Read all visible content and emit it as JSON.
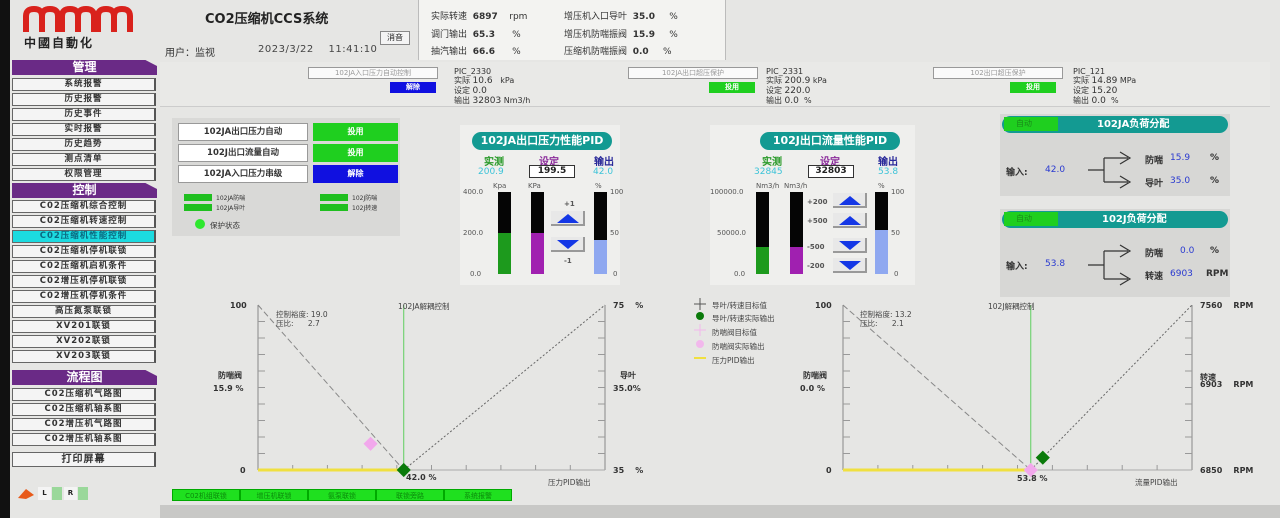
{
  "brand": {
    "name": "中國自動化",
    "logo_color": "#d9221c"
  },
  "header": {
    "title": "CO2压缩机CCS系统",
    "user": "用户：监视",
    "date": "2023/3/22",
    "time": "11:41:10",
    "mute": "消音"
  },
  "info": [
    {
      "label": "实际转速",
      "value": "6897",
      "unit": "rpm"
    },
    {
      "label": "调门输出",
      "value": "65.3",
      "unit": "%"
    },
    {
      "label": "抽汽输出",
      "value": "66.6",
      "unit": "%"
    },
    {
      "label": "增压机入口导叶",
      "value": "35.0",
      "unit": "%"
    },
    {
      "label": "增压机防喘振阀",
      "value": "15.9",
      "unit": "%"
    },
    {
      "label": "压缩机防喘振阀",
      "value": "0.0",
      "unit": "%"
    }
  ],
  "pic": [
    {
      "box": "102JA入口压力自动控制",
      "btn": "解除",
      "btn_color": "#1010e0",
      "tag": "PIC_2330",
      "pv_l": "实际",
      "pv": "10.6",
      "sp_l": "设定",
      "sp": "0.0",
      "out_l": "输出",
      "out": "32803",
      "unit": "kPa",
      "out_unit": "Nm3/h"
    },
    {
      "box": "102JA出口超压保护",
      "btn": "投用",
      "btn_color": "#1fcf1f",
      "tag": "PIC_2331",
      "pv_l": "实际",
      "pv": "200.9",
      "sp_l": "设定",
      "sp": "220.0",
      "out_l": "输出",
      "out": "0.0",
      "unit": "kPa",
      "out_unit": "%"
    },
    {
      "box": "102出口超压保护",
      "btn": "投用",
      "btn_color": "#1fcf1f",
      "tag": "PIC_121",
      "pv_l": "实际",
      "pv": "14.89",
      "sp_l": "设定",
      "sp": "15.20",
      "out_l": "输出",
      "out": "0.0",
      "unit": "MPa",
      "out_unit": "%"
    }
  ],
  "sidebar": {
    "h1": "管理",
    "g1": [
      "系统报警",
      "历史报警",
      "历史事件",
      "实时报警",
      "历史趋势",
      "测点清单",
      "权限管理"
    ],
    "h2": "控制",
    "g2": [
      "C02压缩机综合控制",
      "C02压缩机转速控制",
      "C02压缩机性能控制",
      "C02压缩机停机联锁",
      "C02压缩机启机条件",
      "C02增压机停机联锁",
      "C02增压机停机条件",
      "高压氮泵联锁",
      "XV201联锁",
      "XV202联锁",
      "XV203联锁"
    ],
    "active": "C02压缩机性能控制",
    "h3": "流程图",
    "g3": [
      "C02压缩机气路图",
      "C02压缩机轴系图",
      "C02增压机气路图",
      "C02增压机轴系图"
    ],
    "print": "打印屏幕"
  },
  "controls": {
    "rows": [
      {
        "label": "102JA出口压力自动",
        "btn": "投用",
        "color": "#1fcf1f"
      },
      {
        "label": "102J出口流量自动",
        "btn": "投用",
        "color": "#1fcf1f"
      },
      {
        "label": "102JA入口压力串级",
        "btn": "解除",
        "color": "#1010e0"
      }
    ],
    "leds": [
      "102JA防喘",
      "102JA导叶",
      "102J防喘",
      "102J转速"
    ],
    "protect": "保护状态"
  },
  "pid1": {
    "title": "102JA出口压力性能PID",
    "pv_l": "实测",
    "sp_l": "设定",
    "out_l": "输出",
    "pv": "200.9",
    "sp": "199.5",
    "out": "42.0",
    "u1": "Kpa",
    "u2": "KPa",
    "u3": "%",
    "scale_l": [
      "400.0",
      "200.0",
      "0.0"
    ],
    "scale_r": [
      "100",
      "50",
      "0"
    ],
    "pv_frac": 0.502,
    "sp_frac": 0.499,
    "out_frac": 0.42,
    "step_up": "+1",
    "step_dn": "-1"
  },
  "pid2": {
    "title": "102J出口流量性能PID",
    "pv_l": "实测",
    "sp_l": "设定",
    "out_l": "输出",
    "pv": "32845",
    "sp": "32803",
    "out": "53.8",
    "u1": "Nm3/h",
    "u2": "Nm3/h",
    "u3": "%",
    "scale_l": [
      "100000.0",
      "50000.0",
      "0.0"
    ],
    "scale_r": [
      "100",
      "50",
      "0"
    ],
    "pv_frac": 0.328,
    "sp_frac": 0.328,
    "out_frac": 0.538,
    "steps": [
      "+200",
      "+500",
      "-500",
      "-200"
    ]
  },
  "load1": {
    "auto": "自动",
    "title": "102JA负荷分配",
    "in_l": "输入:",
    "in": "42.0",
    "a_l": "防喘",
    "a": "15.9",
    "a_u": "%",
    "b_l": "导叶",
    "b": "35.0",
    "b_u": "%"
  },
  "load2": {
    "auto": "自动",
    "title": "102J负荷分配",
    "in_l": "输入:",
    "in": "53.8",
    "a_l": "防喘",
    "a": "0.0",
    "a_u": "%",
    "b_l": "转速",
    "b": "6903",
    "b_u": "RPM"
  },
  "chart1": {
    "title": "102JA解耦控制",
    "y_top": "100",
    "y_bot": "0",
    "r_top": "75",
    "r_bot": "35",
    "r_unit": "%",
    "ctrl_l": "控制裕度:",
    "ctrl": "19.0",
    "ratio_l": "压比:",
    "ratio": "2.7",
    "left_name": "防喘阀",
    "left_val": "15.9 %",
    "right_name": "导叶",
    "right_val": "35.0%",
    "x_val": "42.0 %",
    "xlabel": "压力PID输出",
    "pid_out": 42.0,
    "aav": 15.9,
    "igv": 35.0
  },
  "chart2": {
    "title": "102J解耦控制",
    "y_top": "100",
    "y_bot": "0",
    "r_top": "7560",
    "r_bot": "6850",
    "r_unit": "RPM",
    "ctrl_l": "控制裕度:",
    "ctrl": "13.2",
    "ratio_l": "压比:",
    "ratio": "2.1",
    "left_name": "防喘阀",
    "left_val": "0.0 %",
    "right_name": "转速",
    "right_val": "6903",
    "x_val": "53.8 %",
    "xlabel": "流量PID输出",
    "pid_out": 53.8,
    "aav": 0.0,
    "speed": 6903
  },
  "legend": [
    "导叶/转速目标值",
    "导叶/转速实际输出",
    "防喘阀目标值",
    "防喘阀实际输出",
    "压力PID输出"
  ],
  "footer": {
    "buttons": [
      "C02机组联锁",
      "增压机联锁",
      "氨泵联锁",
      "联锁旁路",
      "系统报警"
    ],
    "l": "L",
    "r": "R"
  }
}
